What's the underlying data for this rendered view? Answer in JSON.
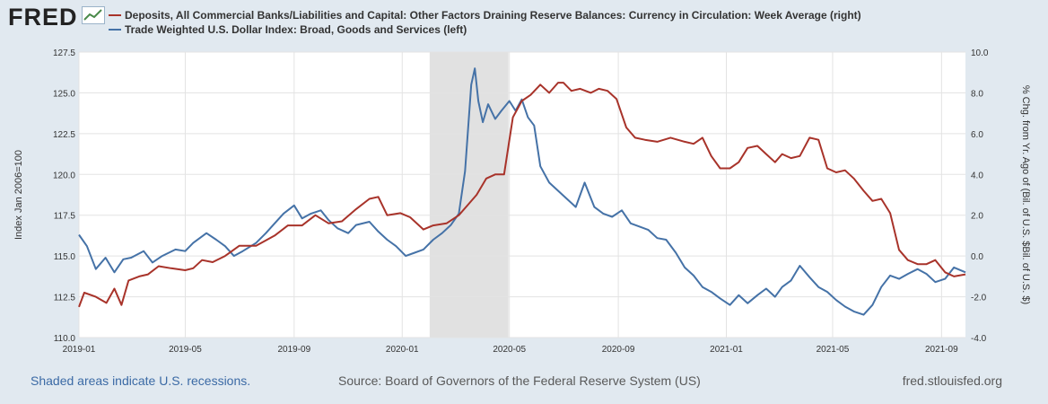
{
  "branding": {
    "logo_text": "FRED",
    "logo_icon": "line-chart-icon"
  },
  "legend": {
    "series_red": "Deposits, All Commercial Banks/Liabilities and Capital: Other Factors Draining Reserve Balances: Currency in Circulation: Week Average (right)",
    "series_blue": "Trade Weighted U.S. Dollar Index: Broad, Goods and Services (left)"
  },
  "footer": {
    "recession_note": "Shaded areas indicate U.S. recessions.",
    "source": "Source: Board of Governors of the Federal Reserve System (US)",
    "site": "fred.stlouisfed.org"
  },
  "colors": {
    "red_series": "#a8332a",
    "blue_series": "#4572a7",
    "recession": "#e1e1e1",
    "grid": "#e3e3e3",
    "plot_bg": "#ffffff"
  },
  "chart_data": {
    "type": "line",
    "title": "",
    "xlabel": "",
    "x_ticks": [
      "2019-01",
      "2019-05",
      "2019-09",
      "2020-01",
      "2020-05",
      "2020-09",
      "2021-01",
      "2021-05",
      "2021-09"
    ],
    "x_range": [
      "2019-01-01",
      "2021-09-28"
    ],
    "left_axis": {
      "label": "Index Jan 2006=100",
      "ylim": [
        110.0,
        127.5
      ],
      "ticks": [
        "110.0",
        "112.5",
        "115.0",
        "117.5",
        "120.0",
        "122.5",
        "125.0",
        "127.5"
      ]
    },
    "right_axis": {
      "label": "% Chg. from Yr. Ago of (Bil. of U.S. $Bil. of U.S. $)",
      "ylim": [
        -4.0,
        10.0
      ],
      "ticks": [
        "-4.0",
        "-2.0",
        "0.0",
        "2.0",
        "4.0",
        "6.0",
        "8.0",
        "10.0"
      ]
    },
    "recessions": [
      {
        "start": "2020-02-01",
        "end": "2020-04-30"
      }
    ],
    "series": [
      {
        "name": "Trade Weighted U.S. Dollar Index: Broad, Goods and Services (left)",
        "axis": "left",
        "color": "#4572a7",
        "points": [
          [
            "2019-01-01",
            116.3
          ],
          [
            "2019-01-10",
            115.6
          ],
          [
            "2019-01-20",
            114.2
          ],
          [
            "2019-01-31",
            114.9
          ],
          [
            "2019-02-10",
            114.0
          ],
          [
            "2019-02-20",
            114.8
          ],
          [
            "2019-03-01",
            114.9
          ],
          [
            "2019-03-15",
            115.3
          ],
          [
            "2019-03-25",
            114.6
          ],
          [
            "2019-04-05",
            115.0
          ],
          [
            "2019-04-20",
            115.4
          ],
          [
            "2019-05-01",
            115.3
          ],
          [
            "2019-05-10",
            115.8
          ],
          [
            "2019-05-25",
            116.4
          ],
          [
            "2019-06-05",
            116.0
          ],
          [
            "2019-06-15",
            115.6
          ],
          [
            "2019-06-25",
            115.0
          ],
          [
            "2019-07-05",
            115.3
          ],
          [
            "2019-07-20",
            115.8
          ],
          [
            "2019-07-31",
            116.4
          ],
          [
            "2019-08-10",
            117.0
          ],
          [
            "2019-08-20",
            117.6
          ],
          [
            "2019-09-01",
            118.1
          ],
          [
            "2019-09-10",
            117.3
          ],
          [
            "2019-09-20",
            117.6
          ],
          [
            "2019-10-01",
            117.8
          ],
          [
            "2019-10-10",
            117.2
          ],
          [
            "2019-10-20",
            116.7
          ],
          [
            "2019-11-01",
            116.4
          ],
          [
            "2019-11-10",
            116.9
          ],
          [
            "2019-11-25",
            117.1
          ],
          [
            "2019-12-05",
            116.5
          ],
          [
            "2019-12-15",
            116.0
          ],
          [
            "2019-12-25",
            115.6
          ],
          [
            "2020-01-05",
            115.0
          ],
          [
            "2020-01-15",
            115.2
          ],
          [
            "2020-01-25",
            115.4
          ],
          [
            "2020-02-05",
            116.0
          ],
          [
            "2020-02-15",
            116.4
          ],
          [
            "2020-02-25",
            116.9
          ],
          [
            "2020-03-05",
            117.6
          ],
          [
            "2020-03-12",
            120.2
          ],
          [
            "2020-03-19",
            125.5
          ],
          [
            "2020-03-23",
            126.5
          ],
          [
            "2020-03-27",
            124.5
          ],
          [
            "2020-04-01",
            123.2
          ],
          [
            "2020-04-07",
            124.3
          ],
          [
            "2020-04-15",
            123.4
          ],
          [
            "2020-04-22",
            123.9
          ],
          [
            "2020-05-01",
            124.5
          ],
          [
            "2020-05-08",
            123.9
          ],
          [
            "2020-05-15",
            124.6
          ],
          [
            "2020-05-22",
            123.5
          ],
          [
            "2020-05-29",
            123.0
          ],
          [
            "2020-06-05",
            120.5
          ],
          [
            "2020-06-15",
            119.5
          ],
          [
            "2020-06-25",
            119.0
          ],
          [
            "2020-07-05",
            118.5
          ],
          [
            "2020-07-15",
            118.0
          ],
          [
            "2020-07-25",
            119.5
          ],
          [
            "2020-08-05",
            118.0
          ],
          [
            "2020-08-15",
            117.6
          ],
          [
            "2020-08-25",
            117.4
          ],
          [
            "2020-09-05",
            117.8
          ],
          [
            "2020-09-15",
            117.0
          ],
          [
            "2020-09-25",
            116.8
          ],
          [
            "2020-10-05",
            116.6
          ],
          [
            "2020-10-15",
            116.1
          ],
          [
            "2020-10-25",
            116.0
          ],
          [
            "2020-11-05",
            115.2
          ],
          [
            "2020-11-15",
            114.3
          ],
          [
            "2020-11-25",
            113.8
          ],
          [
            "2020-12-05",
            113.1
          ],
          [
            "2020-12-15",
            112.8
          ],
          [
            "2020-12-25",
            112.4
          ],
          [
            "2021-01-05",
            112.0
          ],
          [
            "2021-01-15",
            112.6
          ],
          [
            "2021-01-25",
            112.1
          ],
          [
            "2021-02-05",
            112.6
          ],
          [
            "2021-02-15",
            113.0
          ],
          [
            "2021-02-25",
            112.5
          ],
          [
            "2021-03-05",
            113.1
          ],
          [
            "2021-03-15",
            113.5
          ],
          [
            "2021-03-25",
            114.4
          ],
          [
            "2021-04-05",
            113.7
          ],
          [
            "2021-04-15",
            113.1
          ],
          [
            "2021-04-25",
            112.8
          ],
          [
            "2021-05-05",
            112.3
          ],
          [
            "2021-05-15",
            111.9
          ],
          [
            "2021-05-25",
            111.6
          ],
          [
            "2021-06-05",
            111.4
          ],
          [
            "2021-06-15",
            112.0
          ],
          [
            "2021-06-25",
            113.1
          ],
          [
            "2021-07-05",
            113.8
          ],
          [
            "2021-07-15",
            113.6
          ],
          [
            "2021-07-25",
            113.9
          ],
          [
            "2021-08-05",
            114.2
          ],
          [
            "2021-08-15",
            113.9
          ],
          [
            "2021-08-25",
            113.4
          ],
          [
            "2021-09-05",
            113.6
          ],
          [
            "2021-09-15",
            114.3
          ],
          [
            "2021-09-28",
            114.0
          ]
        ]
      },
      {
        "name": "Deposits, All Commercial Banks/Liabilities and Capital: Other Factors Draining Reserve Balances: Currency in Circulation: Week Average (right)",
        "axis": "right",
        "color": "#a8332a",
        "points": [
          [
            "2019-01-01",
            -2.5
          ],
          [
            "2019-01-07",
            -1.8
          ],
          [
            "2019-01-20",
            -2.0
          ],
          [
            "2019-02-01",
            -2.3
          ],
          [
            "2019-02-10",
            -1.6
          ],
          [
            "2019-02-18",
            -2.4
          ],
          [
            "2019-02-26",
            -1.2
          ],
          [
            "2019-03-10",
            -1.0
          ],
          [
            "2019-03-20",
            -0.9
          ],
          [
            "2019-04-01",
            -0.5
          ],
          [
            "2019-04-15",
            -0.6
          ],
          [
            "2019-05-01",
            -0.7
          ],
          [
            "2019-05-10",
            -0.6
          ],
          [
            "2019-05-20",
            -0.2
          ],
          [
            "2019-06-01",
            -0.3
          ],
          [
            "2019-06-15",
            0.0
          ],
          [
            "2019-07-01",
            0.5
          ],
          [
            "2019-07-20",
            0.5
          ],
          [
            "2019-08-10",
            1.0
          ],
          [
            "2019-08-25",
            1.5
          ],
          [
            "2019-09-10",
            1.5
          ],
          [
            "2019-09-25",
            2.0
          ],
          [
            "2019-10-10",
            1.6
          ],
          [
            "2019-10-25",
            1.7
          ],
          [
            "2019-11-10",
            2.3
          ],
          [
            "2019-11-25",
            2.8
          ],
          [
            "2019-12-05",
            2.9
          ],
          [
            "2019-12-15",
            2.0
          ],
          [
            "2019-12-30",
            2.1
          ],
          [
            "2020-01-10",
            1.9
          ],
          [
            "2020-01-25",
            1.3
          ],
          [
            "2020-02-05",
            1.5
          ],
          [
            "2020-02-20",
            1.6
          ],
          [
            "2020-03-05",
            2.0
          ],
          [
            "2020-03-15",
            2.5
          ],
          [
            "2020-03-25",
            3.0
          ],
          [
            "2020-04-05",
            3.8
          ],
          [
            "2020-04-15",
            4.0
          ],
          [
            "2020-04-25",
            4.0
          ],
          [
            "2020-05-05",
            6.8
          ],
          [
            "2020-05-15",
            7.6
          ],
          [
            "2020-05-25",
            7.9
          ],
          [
            "2020-06-05",
            8.4
          ],
          [
            "2020-06-15",
            8.0
          ],
          [
            "2020-06-25",
            8.5
          ],
          [
            "2020-07-01",
            8.5
          ],
          [
            "2020-07-10",
            8.1
          ],
          [
            "2020-07-20",
            8.2
          ],
          [
            "2020-08-01",
            8.0
          ],
          [
            "2020-08-10",
            8.2
          ],
          [
            "2020-08-20",
            8.1
          ],
          [
            "2020-08-30",
            7.7
          ],
          [
            "2020-09-10",
            6.3
          ],
          [
            "2020-09-20",
            5.8
          ],
          [
            "2020-10-01",
            5.7
          ],
          [
            "2020-10-15",
            5.6
          ],
          [
            "2020-10-30",
            5.8
          ],
          [
            "2020-11-15",
            5.6
          ],
          [
            "2020-11-25",
            5.5
          ],
          [
            "2020-12-05",
            5.8
          ],
          [
            "2020-12-15",
            4.9
          ],
          [
            "2020-12-25",
            4.3
          ],
          [
            "2021-01-05",
            4.3
          ],
          [
            "2021-01-15",
            4.6
          ],
          [
            "2021-01-25",
            5.3
          ],
          [
            "2021-02-05",
            5.4
          ],
          [
            "2021-02-15",
            5.0
          ],
          [
            "2021-02-25",
            4.6
          ],
          [
            "2021-03-05",
            5.0
          ],
          [
            "2021-03-15",
            4.8
          ],
          [
            "2021-03-25",
            4.9
          ],
          [
            "2021-04-05",
            5.8
          ],
          [
            "2021-04-15",
            5.7
          ],
          [
            "2021-04-25",
            4.3
          ],
          [
            "2021-05-05",
            4.1
          ],
          [
            "2021-05-15",
            4.2
          ],
          [
            "2021-05-25",
            3.8
          ],
          [
            "2021-06-05",
            3.2
          ],
          [
            "2021-06-15",
            2.7
          ],
          [
            "2021-06-25",
            2.8
          ],
          [
            "2021-07-05",
            2.1
          ],
          [
            "2021-07-15",
            0.3
          ],
          [
            "2021-07-25",
            -0.2
          ],
          [
            "2021-08-05",
            -0.4
          ],
          [
            "2021-08-15",
            -0.4
          ],
          [
            "2021-08-25",
            -0.2
          ],
          [
            "2021-09-05",
            -0.8
          ],
          [
            "2021-09-15",
            -1.0
          ],
          [
            "2021-09-28",
            -0.9
          ]
        ]
      }
    ]
  }
}
